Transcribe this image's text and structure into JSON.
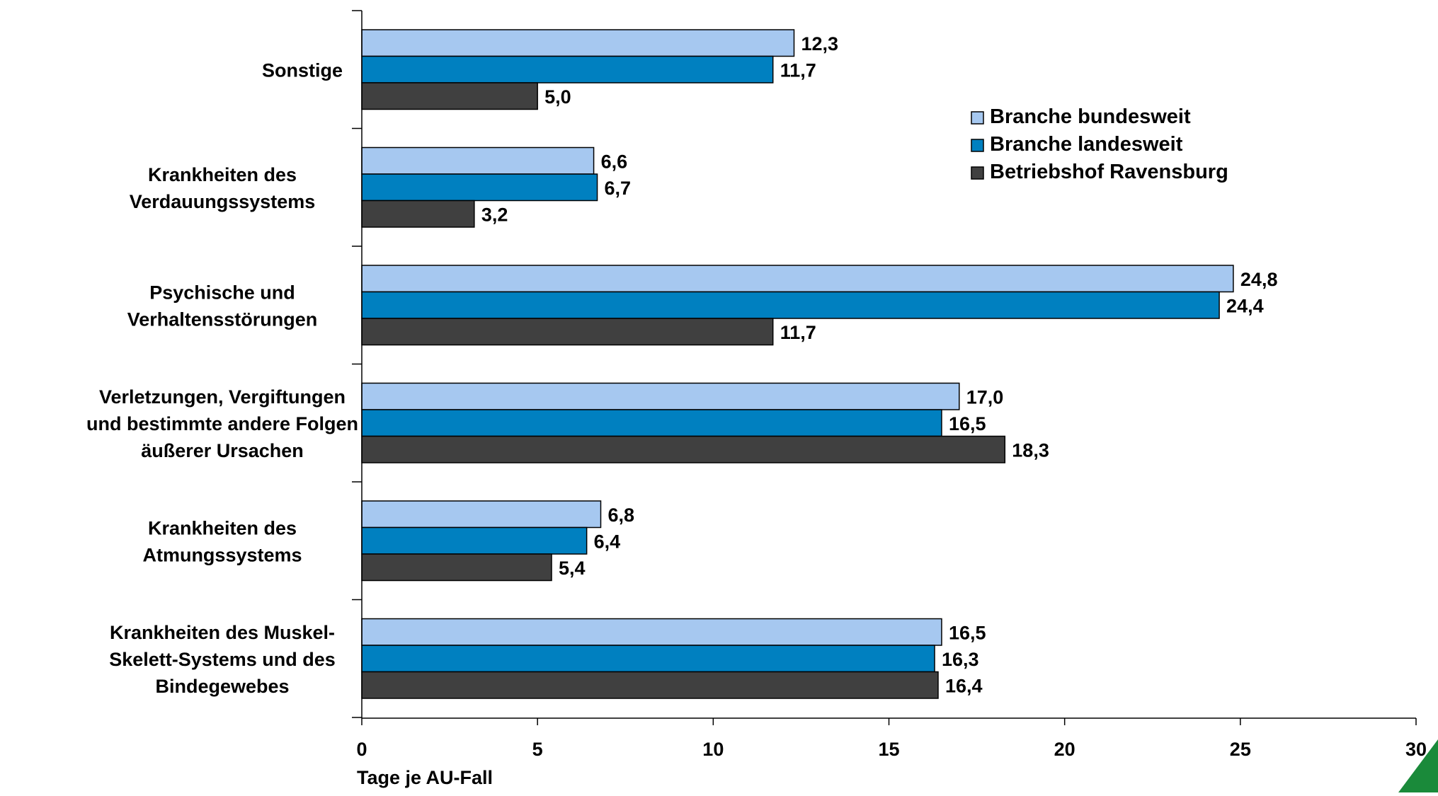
{
  "chart_data": {
    "type": "bar",
    "orientation": "horizontal",
    "categories": [
      [
        "Sonstige"
      ],
      [
        "Krankheiten des",
        "Verdauungssystems"
      ],
      [
        "Psychische und",
        "Verhaltensstörungen"
      ],
      [
        "Verletzungen, Vergiftungen",
        "und bestimmte andere Folgen",
        "äußerer Ursachen"
      ],
      [
        "Krankheiten des",
        "Atmungssystems"
      ],
      [
        "Krankheiten des Muskel-",
        "Skelett-Systems und des",
        "Bindegewebes"
      ]
    ],
    "series": [
      {
        "name": "Branche bundesweit",
        "color": "#a6c8f0",
        "values": [
          12.3,
          6.6,
          24.8,
          17.0,
          6.8,
          16.5
        ],
        "labels": [
          "12,3",
          "6,6",
          "24,8",
          "17,0",
          "6,8",
          "16,5"
        ]
      },
      {
        "name": "Branche landesweit",
        "color": "#0080c0",
        "values": [
          11.7,
          6.7,
          24.4,
          16.5,
          6.4,
          16.3
        ],
        "labels": [
          "11,7",
          "6,7",
          "24,4",
          "16,5",
          "6,4",
          "16,3"
        ]
      },
      {
        "name": "Betriebshof Ravensburg",
        "color": "#404040",
        "values": [
          5.0,
          3.2,
          11.7,
          18.3,
          5.4,
          16.4
        ],
        "labels": [
          "5,0",
          "3,2",
          "11,7",
          "18,3",
          "5,4",
          "16,4"
        ]
      }
    ],
    "xlabel": "Tage je AU-Fall",
    "xlim": [
      0,
      30
    ],
    "xticks": [
      "0",
      "5",
      "10",
      "15",
      "20",
      "25",
      "30"
    ],
    "grid": false,
    "legend": "top-right"
  }
}
